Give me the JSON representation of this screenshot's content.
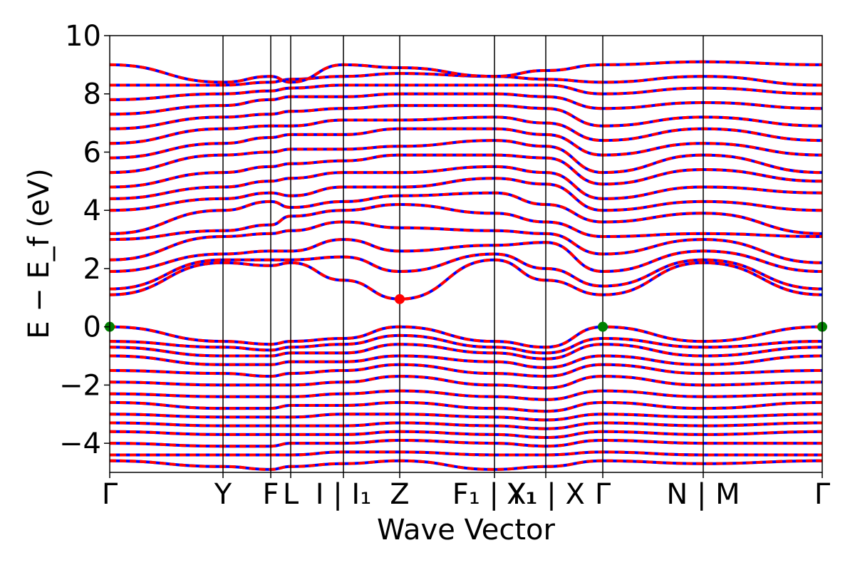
{
  "chart_data": {
    "type": "line",
    "title": "",
    "xlabel": "Wave Vector",
    "ylabel": "E − E_f (eV)",
    "ylim": [
      -5,
      10
    ],
    "yticks": [
      -4,
      -2,
      0,
      2,
      4,
      6,
      8,
      10
    ],
    "ytick_labels": [
      "−4",
      "−2",
      "0",
      "2",
      "4",
      "6",
      "8",
      "10"
    ],
    "xlim": [
      0,
      1
    ],
    "kpoints": [
      {
        "label": "Γ",
        "x": 0.0
      },
      {
        "label": "Y",
        "x": 0.159
      },
      {
        "label": "F",
        "x": 0.226
      },
      {
        "label": "L",
        "x": 0.254
      },
      {
        "label": "I | I₁",
        "x": 0.328
      },
      {
        "label": "Z",
        "x": 0.407
      },
      {
        "label": "F₁ | Y₁",
        "x": 0.54
      },
      {
        "label": "X₁ | X",
        "x": 0.612
      },
      {
        "label": "Γ",
        "x": 0.692
      },
      {
        "label": "N | M",
        "x": 0.833
      },
      {
        "label": "Γ",
        "x": 1.0
      }
    ],
    "colors": {
      "spin_up": "#0000ff",
      "spin_down": "#ff0000",
      "vbm": "#008000",
      "cbm": "#ff0000"
    },
    "series": [
      {
        "values": [
          1.1,
          2.2,
          2.1,
          2.2,
          1.6,
          0.95,
          2.3,
          1.6,
          1.1,
          2.2,
          1.1
        ]
      },
      {
        "values": [
          1.3,
          2.3,
          2.3,
          2.3,
          2.4,
          1.9,
          2.5,
          2.0,
          1.4,
          2.3,
          1.3
        ]
      },
      {
        "values": [
          1.9,
          2.5,
          2.6,
          2.6,
          3.0,
          2.6,
          2.8,
          2.9,
          1.9,
          2.6,
          1.9
        ]
      },
      {
        "values": [
          2.3,
          3.1,
          3.2,
          3.3,
          3.6,
          3.4,
          3.3,
          3.2,
          2.5,
          3.0,
          2.2
        ]
      },
      {
        "values": [
          3.0,
          3.3,
          3.5,
          3.8,
          4.0,
          4.2,
          3.9,
          3.6,
          3.1,
          3.2,
          3.1
        ]
      },
      {
        "values": [
          3.2,
          4.0,
          4.3,
          4.1,
          4.3,
          4.5,
          4.6,
          4.2,
          3.6,
          3.9,
          3.2
        ]
      },
      {
        "values": [
          4.0,
          4.4,
          4.6,
          4.5,
          4.8,
          4.8,
          5.1,
          4.9,
          4.0,
          4.3,
          4.0
        ]
      },
      {
        "values": [
          4.4,
          4.8,
          5.0,
          5.1,
          5.3,
          5.3,
          5.5,
          5.3,
          4.4,
          4.8,
          4.6
        ]
      },
      {
        "values": [
          4.8,
          5.3,
          5.5,
          5.6,
          5.7,
          5.9,
          5.9,
          5.8,
          4.9,
          5.4,
          5.0
        ]
      },
      {
        "values": [
          5.3,
          5.9,
          6.0,
          6.1,
          6.1,
          6.2,
          6.4,
          6.2,
          5.3,
          5.9,
          5.3
        ]
      },
      {
        "values": [
          5.8,
          6.3,
          6.5,
          6.6,
          6.6,
          6.8,
          6.8,
          6.6,
          5.9,
          6.3,
          5.9
        ]
      },
      {
        "values": [
          6.3,
          6.8,
          6.9,
          6.9,
          7.1,
          7.1,
          7.2,
          7.0,
          6.4,
          6.8,
          6.4
        ]
      },
      {
        "values": [
          6.8,
          7.2,
          7.3,
          7.4,
          7.5,
          7.6,
          7.6,
          7.5,
          6.9,
          7.2,
          6.9
        ]
      },
      {
        "values": [
          7.3,
          7.6,
          7.8,
          7.9,
          7.9,
          8.0,
          8.0,
          7.9,
          7.5,
          7.7,
          7.5
        ]
      },
      {
        "values": [
          7.8,
          8.0,
          8.1,
          8.2,
          8.3,
          8.3,
          8.3,
          8.3,
          8.0,
          8.2,
          8.0
        ]
      },
      {
        "values": [
          8.3,
          8.3,
          8.4,
          8.5,
          8.6,
          8.7,
          8.6,
          8.5,
          8.4,
          8.6,
          8.3
        ]
      },
      {
        "values": [
          9.0,
          8.4,
          8.6,
          8.4,
          9.0,
          8.9,
          8.6,
          8.8,
          9.0,
          9.1,
          9.0
        ]
      },
      {
        "values": [
          0.0,
          -0.5,
          -0.6,
          -0.5,
          -0.4,
          0.0,
          -0.5,
          -0.7,
          0.0,
          -0.5,
          0.0
        ]
      },
      {
        "values": [
          -0.5,
          -0.7,
          -0.8,
          -0.7,
          -0.6,
          -0.3,
          -0.7,
          -0.9,
          -0.4,
          -0.7,
          -0.5
        ]
      },
      {
        "values": [
          -0.7,
          -1.0,
          -1.0,
          -0.9,
          -0.9,
          -0.6,
          -0.9,
          -1.1,
          -0.6,
          -1.0,
          -0.7
        ]
      },
      {
        "values": [
          -1.0,
          -1.3,
          -1.3,
          -1.2,
          -1.2,
          -1.0,
          -1.2,
          -1.4,
          -1.0,
          -1.3,
          -1.0
        ]
      },
      {
        "values": [
          -1.5,
          -1.6,
          -1.7,
          -1.6,
          -1.5,
          -1.3,
          -1.6,
          -1.7,
          -1.3,
          -1.6,
          -1.5
        ]
      },
      {
        "values": [
          -1.9,
          -2.0,
          -2.0,
          -2.0,
          -1.9,
          -1.7,
          -2.0,
          -2.1,
          -1.7,
          -2.0,
          -1.9
        ]
      },
      {
        "values": [
          -2.3,
          -2.4,
          -2.4,
          -2.4,
          -2.3,
          -2.2,
          -2.4,
          -2.5,
          -2.2,
          -2.4,
          -2.3
        ]
      },
      {
        "values": [
          -2.6,
          -2.8,
          -2.8,
          -2.7,
          -2.7,
          -2.6,
          -2.8,
          -2.9,
          -2.6,
          -2.8,
          -2.6
        ]
      },
      {
        "values": [
          -3.0,
          -3.1,
          -3.1,
          -3.1,
          -3.0,
          -3.0,
          -3.1,
          -3.2,
          -3.0,
          -3.1,
          -3.0
        ]
      },
      {
        "values": [
          -3.3,
          -3.4,
          -3.4,
          -3.4,
          -3.4,
          -3.3,
          -3.4,
          -3.5,
          -3.3,
          -3.4,
          -3.3
        ]
      },
      {
        "values": [
          -3.6,
          -3.7,
          -3.7,
          -3.7,
          -3.7,
          -3.6,
          -3.7,
          -3.8,
          -3.6,
          -3.7,
          -3.6
        ]
      },
      {
        "values": [
          -4.0,
          -4.1,
          -4.1,
          -4.0,
          -4.0,
          -3.9,
          -4.0,
          -4.1,
          -3.9,
          -4.0,
          -4.0
        ]
      },
      {
        "values": [
          -4.4,
          -4.4,
          -4.4,
          -4.4,
          -4.3,
          -4.3,
          -4.4,
          -4.4,
          -4.3,
          -4.4,
          -4.4
        ]
      },
      {
        "values": [
          -4.6,
          -4.8,
          -4.9,
          -4.8,
          -4.7,
          -4.6,
          -4.9,
          -4.8,
          -4.6,
          -4.7,
          -4.6
        ]
      }
    ],
    "markers": [
      {
        "label": "VBM",
        "x": 0.0,
        "y": 0.0,
        "color": "#008000"
      },
      {
        "label": "VBM",
        "x": 0.692,
        "y": 0.0,
        "color": "#008000"
      },
      {
        "label": "VBM",
        "x": 1.0,
        "y": 0.0,
        "color": "#008000"
      },
      {
        "label": "CBM",
        "x": 0.407,
        "y": 0.95,
        "color": "#ff0000"
      }
    ],
    "grid": false,
    "legend": "none"
  }
}
